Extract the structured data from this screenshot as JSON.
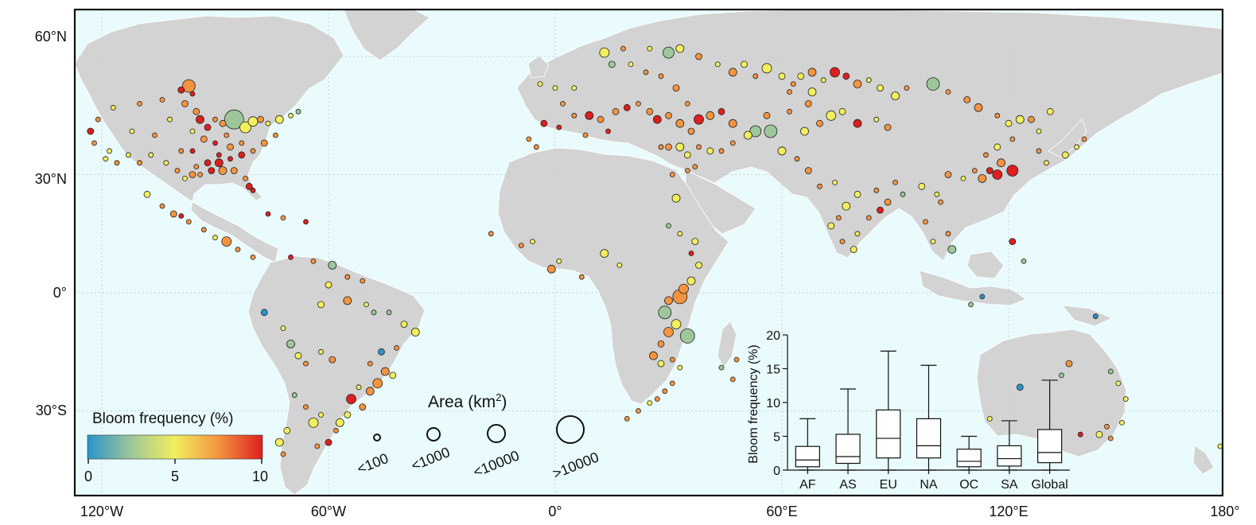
{
  "map": {
    "lat_labels": [
      "60°N",
      "30°N",
      "0°",
      "30°S"
    ],
    "lon_labels": [
      "120°W",
      "60°W",
      "0°",
      "60°E",
      "120°E",
      "180°"
    ],
    "colors": {
      "ocean": "#e9fbfd",
      "land": "#d3d3d3",
      "frame": "#111111",
      "grid": "#c8d2d6"
    }
  },
  "legend": {
    "color_title": "Bloom frequency (%)",
    "color_ticks": [
      "0",
      "5",
      "10"
    ],
    "gradient_stops": [
      "#2a94c8",
      "#9dc79a",
      "#f2ee5e",
      "#f49440",
      "#de1f1f"
    ],
    "size_title": "Area (km",
    "size_title_sup": "2",
    "size_title_close": ")",
    "size_classes": [
      "<100",
      "<1000",
      "<10000",
      ">10000"
    ]
  },
  "chart_data": {
    "type": "box",
    "categories": [
      "AF",
      "AS",
      "EU",
      "NA",
      "OC",
      "SA",
      "Global"
    ],
    "ylabel": "Bloom frequency (%)",
    "ylim": [
      0,
      20
    ],
    "yticks": [
      "0",
      "5",
      "10",
      "15",
      "20"
    ],
    "boxes": [
      {
        "min": 0,
        "q1": 0.5,
        "median": 1.5,
        "q3": 3.5,
        "max": 7.6
      },
      {
        "min": 0,
        "q1": 1.0,
        "median": 2.0,
        "q3": 5.3,
        "max": 12.0
      },
      {
        "min": 0,
        "q1": 1.8,
        "median": 4.7,
        "q3": 8.9,
        "max": 17.6
      },
      {
        "min": 0,
        "q1": 1.8,
        "median": 3.6,
        "q3": 7.6,
        "max": 15.5
      },
      {
        "min": 0,
        "q1": 0.5,
        "median": 1.3,
        "q3": 3.1,
        "max": 5.0
      },
      {
        "min": 0,
        "q1": 0.6,
        "median": 1.7,
        "q3": 3.6,
        "max": 7.3
      },
      {
        "min": 0,
        "q1": 1.1,
        "median": 2.6,
        "q3": 6.0,
        "max": 13.3
      }
    ]
  },
  "lakes": [
    [
      -97,
      52.5,
      8,
      "orange"
    ],
    [
      -99,
      51.5,
      4,
      "red"
    ],
    [
      -96,
      50.5,
      3,
      "red"
    ],
    [
      -98,
      48,
      4,
      "orange"
    ],
    [
      -104,
      49,
      3,
      "orange"
    ],
    [
      -110,
      48,
      3,
      "orange"
    ],
    [
      -117,
      47,
      3,
      "yellow"
    ],
    [
      -121,
      44,
      3,
      "orange"
    ],
    [
      -123,
      41,
      4,
      "red"
    ],
    [
      -122,
      38,
      3,
      "orange"
    ],
    [
      -118,
      36,
      3,
      "yellow"
    ],
    [
      -112,
      41,
      3,
      "yellow"
    ],
    [
      -106,
      40,
      3,
      "orange"
    ],
    [
      -102,
      44,
      3,
      "yellow"
    ],
    [
      -95,
      46,
      4,
      "orange"
    ],
    [
      -94,
      44,
      5,
      "red"
    ],
    [
      -92,
      42,
      4,
      "red"
    ],
    [
      -90,
      44,
      3,
      "orange"
    ],
    [
      -88,
      43,
      4,
      "orange"
    ],
    [
      -85,
      44,
      12,
      "green"
    ],
    [
      -82,
      42,
      7,
      "yellow"
    ],
    [
      -80,
      43.5,
      6,
      "yellow"
    ],
    [
      -78,
      44,
      4,
      "orange"
    ],
    [
      -76,
      43,
      3,
      "yellow"
    ],
    [
      -73,
      44,
      5,
      "yellow"
    ],
    [
      -70,
      45,
      3,
      "yellow"
    ],
    [
      -68,
      46,
      3,
      "green"
    ],
    [
      -74,
      40,
      3,
      "orange"
    ],
    [
      -77,
      38,
      4,
      "orange"
    ],
    [
      -80,
      36,
      3,
      "orange"
    ],
    [
      -83,
      35,
      4,
      "red"
    ],
    [
      -86,
      34,
      3,
      "red"
    ],
    [
      -89,
      33,
      5,
      "red"
    ],
    [
      -92,
      33,
      4,
      "red"
    ],
    [
      -95,
      32,
      3,
      "orange"
    ],
    [
      -96,
      30,
      4,
      "orange"
    ],
    [
      -98,
      29,
      3,
      "yellow"
    ],
    [
      -100,
      31,
      3,
      "orange"
    ],
    [
      -103,
      33,
      3,
      "yellow"
    ],
    [
      -107,
      35,
      3,
      "yellow"
    ],
    [
      -110,
      33,
      3,
      "orange"
    ],
    [
      -113,
      35,
      3,
      "yellow"
    ],
    [
      -116,
      33,
      3,
      "orange"
    ],
    [
      -119,
      34,
      3,
      "yellow"
    ],
    [
      -85,
      31,
      4,
      "orange"
    ],
    [
      -82,
      29,
      3,
      "orange"
    ],
    [
      -81,
      27,
      4,
      "red"
    ],
    [
      -80,
      26,
      3,
      "red"
    ],
    [
      -88,
      31,
      5,
      "orange"
    ],
    [
      -91,
      31,
      4,
      "red"
    ],
    [
      -94,
      30,
      3,
      "orange"
    ],
    [
      -89,
      35,
      3,
      "red"
    ],
    [
      -86,
      37,
      4,
      "orange"
    ],
    [
      -83,
      38,
      3,
      "orange"
    ],
    [
      -96,
      36,
      3,
      "red"
    ],
    [
      -99,
      36,
      3,
      "orange"
    ],
    [
      -90,
      38,
      3,
      "red"
    ],
    [
      -93,
      39,
      4,
      "orange"
    ],
    [
      -87,
      40,
      3,
      "orange"
    ],
    [
      -96,
      41,
      3,
      "yellow"
    ],
    [
      -108,
      25,
      4,
      "yellow"
    ],
    [
      -104,
      22,
      3,
      "orange"
    ],
    [
      -101,
      20,
      4,
      "orange"
    ],
    [
      -99,
      19.5,
      3,
      "red"
    ],
    [
      -97,
      18,
      3,
      "orange"
    ],
    [
      -93,
      16,
      3,
      "orange"
    ],
    [
      -90,
      14,
      3,
      "yellow"
    ],
    [
      -87,
      13,
      6,
      "orange"
    ],
    [
      -84,
      11,
      3,
      "orange"
    ],
    [
      -80,
      9,
      3,
      "orange"
    ],
    [
      -76,
      20,
      3,
      "red"
    ],
    [
      -72,
      19,
      3,
      "orange"
    ],
    [
      -66,
      18,
      3,
      "red"
    ],
    [
      -70,
      9,
      3,
      "red"
    ],
    [
      -64,
      8,
      3,
      "orange"
    ],
    [
      -59,
      7,
      5,
      "green"
    ],
    [
      -55,
      4,
      3,
      "orange"
    ],
    [
      -51,
      3,
      3,
      "orange"
    ],
    [
      -60,
      2,
      4,
      "yellow"
    ],
    [
      -62,
      -3,
      4,
      "yellow"
    ],
    [
      -55,
      -2,
      5,
      "orange"
    ],
    [
      -50,
      -3,
      3,
      "yellow"
    ],
    [
      -48,
      -5,
      3,
      "green"
    ],
    [
      -44,
      -5,
      3,
      "green"
    ],
    [
      -40,
      -8,
      4,
      "yellow"
    ],
    [
      -37,
      -10,
      5,
      "yellow"
    ],
    [
      -42,
      -14,
      3,
      "orange"
    ],
    [
      -46,
      -15,
      4,
      "blue"
    ],
    [
      -49,
      -18,
      3,
      "orange"
    ],
    [
      -45,
      -20,
      5,
      "orange"
    ],
    [
      -43,
      -21,
      4,
      "yellow"
    ],
    [
      -47,
      -23,
      6,
      "orange"
    ],
    [
      -49,
      -25,
      5,
      "orange"
    ],
    [
      -52,
      -24,
      3,
      "yellow"
    ],
    [
      -54,
      -27,
      6,
      "red"
    ],
    [
      -51,
      -29,
      4,
      "orange"
    ],
    [
      -55,
      -31,
      4,
      "yellow"
    ],
    [
      -57,
      -33,
      5,
      "yellow"
    ],
    [
      -58,
      -35,
      3,
      "orange"
    ],
    [
      -60,
      -38,
      4,
      "red"
    ],
    [
      -63,
      -39,
      3,
      "orange"
    ],
    [
      -64,
      -33,
      6,
      "yellow"
    ],
    [
      -62,
      -31,
      3,
      "yellow"
    ],
    [
      -66,
      -29,
      3,
      "orange"
    ],
    [
      -69,
      -26,
      3,
      "green"
    ],
    [
      -71,
      -35,
      4,
      "yellow"
    ],
    [
      -73,
      -38,
      5,
      "yellow"
    ],
    [
      -72,
      -41,
      3,
      "orange"
    ],
    [
      -70,
      -13,
      5,
      "green"
    ],
    [
      -68,
      -16,
      4,
      "yellow"
    ],
    [
      -66,
      -18,
      3,
      "orange"
    ],
    [
      -72,
      -9,
      3,
      "yellow"
    ],
    [
      -77,
      -5,
      4,
      "blue"
    ],
    [
      -62,
      -15,
      3,
      "yellow"
    ],
    [
      -59,
      -17,
      4,
      "orange"
    ],
    [
      -4,
      53,
      3,
      "yellow"
    ],
    [
      0,
      52,
      3,
      "yellow"
    ],
    [
      5,
      52,
      3,
      "yellow"
    ],
    [
      2,
      48,
      3,
      "orange"
    ],
    [
      -3,
      43,
      4,
      "red"
    ],
    [
      1,
      42,
      3,
      "red"
    ],
    [
      5,
      45,
      3,
      "orange"
    ],
    [
      9,
      45,
      5,
      "red"
    ],
    [
      12,
      44,
      4,
      "orange"
    ],
    [
      8,
      40,
      3,
      "orange"
    ],
    [
      -7,
      39,
      3,
      "orange"
    ],
    [
      -5,
      37,
      3,
      "orange"
    ],
    [
      14,
      41,
      3,
      "red"
    ],
    [
      16,
      46,
      4,
      "orange"
    ],
    [
      19,
      47,
      4,
      "red"
    ],
    [
      22,
      48,
      3,
      "orange"
    ],
    [
      25,
      46,
      4,
      "orange"
    ],
    [
      27,
      44,
      5,
      "red"
    ],
    [
      30,
      45,
      4,
      "orange"
    ],
    [
      33,
      43,
      5,
      "orange"
    ],
    [
      36,
      41,
      4,
      "orange"
    ],
    [
      38,
      44,
      6,
      "red"
    ],
    [
      41,
      45,
      5,
      "orange"
    ],
    [
      44,
      46,
      4,
      "red"
    ],
    [
      47,
      43,
      5,
      "orange"
    ],
    [
      35,
      48,
      3,
      "orange"
    ],
    [
      32,
      52,
      4,
      "orange"
    ],
    [
      28,
      55,
      3,
      "orange"
    ],
    [
      24,
      56,
      3,
      "orange"
    ],
    [
      20,
      58,
      3,
      "yellow"
    ],
    [
      15,
      58,
      4,
      "green"
    ],
    [
      13,
      61,
      6,
      "yellow"
    ],
    [
      18,
      62,
      3,
      "orange"
    ],
    [
      25,
      62,
      3,
      "yellow"
    ],
    [
      30,
      61,
      7,
      "green"
    ],
    [
      33,
      62,
      5,
      "yellow"
    ],
    [
      38,
      60,
      4,
      "orange"
    ],
    [
      43,
      58,
      3,
      "yellow"
    ],
    [
      47,
      56,
      5,
      "orange"
    ],
    [
      50,
      58,
      4,
      "yellow"
    ],
    [
      53,
      55,
      3,
      "orange"
    ],
    [
      56,
      57,
      6,
      "yellow"
    ],
    [
      60,
      55,
      4,
      "yellow"
    ],
    [
      63,
      53,
      3,
      "orange"
    ],
    [
      65,
      55,
      4,
      "yellow"
    ],
    [
      68,
      56,
      5,
      "orange"
    ],
    [
      71,
      54,
      3,
      "yellow"
    ],
    [
      74,
      56,
      6,
      "red"
    ],
    [
      77,
      55,
      4,
      "red"
    ],
    [
      80,
      53,
      5,
      "orange"
    ],
    [
      83,
      54,
      3,
      "yellow"
    ],
    [
      86,
      52,
      4,
      "yellow"
    ],
    [
      90,
      50,
      5,
      "yellow"
    ],
    [
      93,
      52,
      3,
      "orange"
    ],
    [
      100,
      53,
      8,
      "green"
    ],
    [
      104,
      51,
      3,
      "orange"
    ],
    [
      109,
      49,
      4,
      "orange"
    ],
    [
      112,
      47,
      5,
      "orange"
    ],
    [
      117,
      45,
      3,
      "orange"
    ],
    [
      120,
      43,
      4,
      "yellow"
    ],
    [
      123,
      44,
      5,
      "yellow"
    ],
    [
      126,
      44,
      4,
      "orange"
    ],
    [
      128,
      41,
      3,
      "yellow"
    ],
    [
      131,
      46,
      4,
      "yellow"
    ],
    [
      121,
      39,
      3,
      "orange"
    ],
    [
      117,
      37,
      4,
      "yellow"
    ],
    [
      114,
      35,
      3,
      "orange"
    ],
    [
      118,
      33,
      5,
      "orange"
    ],
    [
      121,
      31,
      7,
      "red"
    ],
    [
      117,
      30,
      6,
      "red"
    ],
    [
      113,
      29,
      5,
      "orange"
    ],
    [
      115,
      31,
      4,
      "red"
    ],
    [
      111,
      31,
      3,
      "orange"
    ],
    [
      108,
      29,
      3,
      "yellow"
    ],
    [
      104,
      30,
      4,
      "orange"
    ],
    [
      101,
      25,
      3,
      "yellow"
    ],
    [
      102,
      23,
      3,
      "orange"
    ],
    [
      97,
      27,
      4,
      "yellow"
    ],
    [
      92,
      25,
      3,
      "green"
    ],
    [
      88,
      23,
      4,
      "orange"
    ],
    [
      85,
      26,
      3,
      "orange"
    ],
    [
      80,
      25,
      4,
      "yellow"
    ],
    [
      77,
      22,
      5,
      "yellow"
    ],
    [
      75,
      19,
      3,
      "orange"
    ],
    [
      73,
      17,
      4,
      "yellow"
    ],
    [
      76,
      13,
      3,
      "orange"
    ],
    [
      79,
      11,
      4,
      "yellow"
    ],
    [
      80,
      15,
      3,
      "yellow"
    ],
    [
      83,
      19,
      3,
      "orange"
    ],
    [
      86,
      21,
      4,
      "red"
    ],
    [
      74,
      28,
      3,
      "yellow"
    ],
    [
      70,
      27,
      3,
      "orange"
    ],
    [
      67,
      31,
      4,
      "orange"
    ],
    [
      64,
      34,
      3,
      "orange"
    ],
    [
      60,
      36,
      5,
      "yellow"
    ],
    [
      57,
      41,
      8,
      "green"
    ],
    [
      53,
      41,
      7,
      "green"
    ],
    [
      51,
      40,
      5,
      "yellow"
    ],
    [
      56,
      45,
      4,
      "orange"
    ],
    [
      66,
      41,
      5,
      "yellow"
    ],
    [
      70,
      43,
      4,
      "orange"
    ],
    [
      73,
      45,
      6,
      "yellow"
    ],
    [
      76,
      46,
      4,
      "yellow"
    ],
    [
      80,
      43,
      5,
      "red"
    ],
    [
      85,
      44,
      3,
      "yellow"
    ],
    [
      88,
      42,
      4,
      "orange"
    ],
    [
      62,
      46,
      3,
      "orange"
    ],
    [
      67,
      48,
      4,
      "orange"
    ],
    [
      68,
      51,
      5,
      "yellow"
    ],
    [
      62,
      51,
      3,
      "orange"
    ],
    [
      47,
      38,
      3,
      "orange"
    ],
    [
      44,
      36,
      3,
      "orange"
    ],
    [
      41,
      36,
      4,
      "yellow"
    ],
    [
      38,
      37,
      3,
      "orange"
    ],
    [
      35,
      35,
      4,
      "yellow"
    ],
    [
      33,
      37,
      5,
      "yellow"
    ],
    [
      30,
      37,
      4,
      "orange"
    ],
    [
      28,
      37,
      3,
      "orange"
    ],
    [
      37,
      32,
      3,
      "orange"
    ],
    [
      35,
      31,
      3,
      "orange"
    ],
    [
      31,
      30,
      3,
      "orange"
    ],
    [
      32,
      24,
      5,
      "yellow"
    ],
    [
      30,
      17,
      3,
      "green"
    ],
    [
      33,
      15,
      3,
      "yellow"
    ],
    [
      37,
      13,
      4,
      "yellow"
    ],
    [
      36,
      10,
      3,
      "red"
    ],
    [
      38,
      7,
      4,
      "yellow"
    ],
    [
      36,
      3,
      5,
      "yellow"
    ],
    [
      34,
      1,
      6,
      "orange"
    ],
    [
      33,
      -1,
      9,
      "orange"
    ],
    [
      30,
      -2,
      5,
      "orange"
    ],
    [
      29,
      -5,
      8,
      "green"
    ],
    [
      32,
      -8,
      6,
      "yellow"
    ],
    [
      35,
      -11,
      9,
      "green"
    ],
    [
      30,
      -10,
      6,
      "orange"
    ],
    [
      28,
      -13,
      4,
      "orange"
    ],
    [
      26,
      -16,
      5,
      "orange"
    ],
    [
      28,
      -18,
      4,
      "yellow"
    ],
    [
      31,
      -17,
      3,
      "orange"
    ],
    [
      33,
      -19,
      3,
      "yellow"
    ],
    [
      31,
      -23,
      3,
      "orange"
    ],
    [
      29,
      -25,
      3,
      "orange"
    ],
    [
      27,
      -27,
      3,
      "orange"
    ],
    [
      25,
      -28,
      3,
      "yellow"
    ],
    [
      22,
      -30,
      3,
      "orange"
    ],
    [
      19,
      -32,
      3,
      "orange"
    ],
    [
      -1,
      6,
      5,
      "orange"
    ],
    [
      1,
      8,
      3,
      "yellow"
    ],
    [
      -9,
      12,
      3,
      "orange"
    ],
    [
      -6,
      13,
      3,
      "yellow"
    ],
    [
      13,
      10,
      5,
      "yellow"
    ],
    [
      17,
      7,
      3,
      "yellow"
    ],
    [
      7,
      4,
      3,
      "orange"
    ],
    [
      -17,
      15,
      3,
      "orange"
    ],
    [
      44,
      -19,
      3,
      "green"
    ],
    [
      47,
      -22,
      3,
      "orange"
    ],
    [
      48,
      -17,
      3,
      "orange"
    ],
    [
      136,
      -18,
      4,
      "orange"
    ],
    [
      134,
      -21,
      3,
      "green"
    ],
    [
      123,
      -24,
      4,
      "blue"
    ],
    [
      147,
      -20,
      3,
      "green"
    ],
    [
      149,
      -23,
      3,
      "yellow"
    ],
    [
      151,
      -27,
      3,
      "yellow"
    ],
    [
      146,
      -34,
      3,
      "orange"
    ],
    [
      144,
      -36,
      4,
      "yellow"
    ],
    [
      147,
      -37,
      3,
      "orange"
    ],
    [
      139,
      -36,
      3,
      "red"
    ],
    [
      150,
      -33,
      3,
      "yellow"
    ],
    [
      176,
      -39,
      3,
      "yellow"
    ],
    [
      115,
      -32,
      3,
      "yellow"
    ],
    [
      121,
      13,
      4,
      "red"
    ],
    [
      124,
      8,
      3,
      "green"
    ],
    [
      113,
      -1,
      3,
      "blue"
    ],
    [
      110,
      -3,
      3,
      "green"
    ],
    [
      143,
      -6,
      3,
      "blue"
    ],
    [
      104,
      15,
      3,
      "orange"
    ],
    [
      100,
      13,
      3,
      "yellow"
    ],
    [
      98,
      18,
      3,
      "orange"
    ],
    [
      105,
      11,
      5,
      "green"
    ],
    [
      90,
      28,
      3,
      "orange"
    ],
    [
      130,
      33,
      3,
      "yellow"
    ],
    [
      135,
      35,
      4,
      "yellow"
    ],
    [
      138,
      37,
      3,
      "yellow"
    ],
    [
      140,
      39,
      3,
      "orange"
    ],
    [
      128,
      36,
      3,
      "orange"
    ]
  ]
}
